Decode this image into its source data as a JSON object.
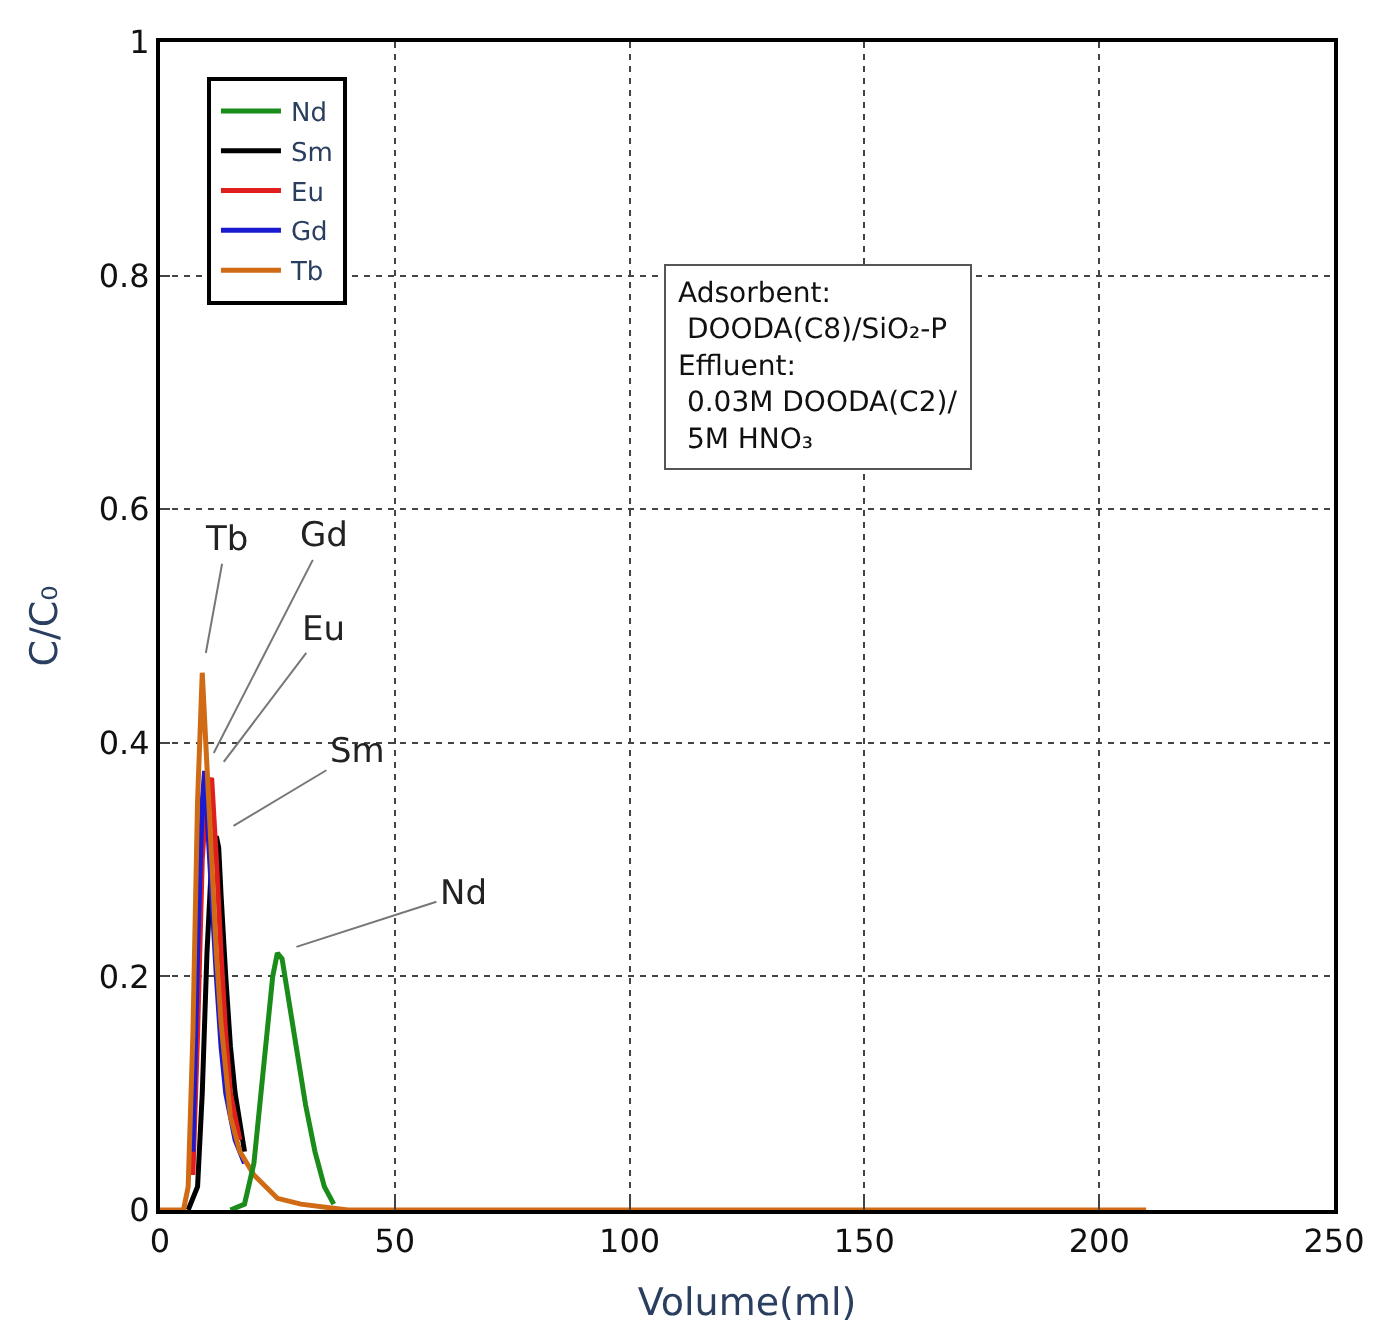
{
  "chart_data": {
    "type": "line",
    "xlabel": "Volume(ml)",
    "ylabel": "C/C₀",
    "xlim": [
      0,
      250
    ],
    "ylim": [
      0,
      1
    ],
    "xticks": [
      0,
      50,
      100,
      150,
      200,
      250
    ],
    "yticks": [
      0,
      0.2,
      0.4,
      0.6,
      0.8,
      1
    ],
    "grid": true,
    "legend": "top left",
    "series": [
      {
        "name": "Nd",
        "color": "#1a8c1a",
        "x": [
          15,
          18,
          20,
          22,
          24,
          25,
          26,
          27,
          29,
          31,
          33,
          35,
          37
        ],
        "values": [
          0,
          0.005,
          0.04,
          0.12,
          0.2,
          0.22,
          0.215,
          0.19,
          0.14,
          0.09,
          0.05,
          0.02,
          0.005
        ]
      },
      {
        "name": "Sm",
        "color": "#000000",
        "x": [
          6,
          8,
          9,
          10,
          11,
          12,
          12.5,
          13,
          14,
          15,
          16,
          18
        ],
        "values": [
          0,
          0.02,
          0.1,
          0.22,
          0.3,
          0.32,
          0.31,
          0.27,
          0.2,
          0.14,
          0.1,
          0.05
        ]
      },
      {
        "name": "Eu",
        "color": "#e01e1e",
        "x": [
          7,
          8,
          9,
          10,
          11,
          12,
          13,
          14,
          15,
          17
        ],
        "values": [
          0.03,
          0.15,
          0.3,
          0.36,
          0.37,
          0.3,
          0.22,
          0.15,
          0.1,
          0.06
        ]
      },
      {
        "name": "Gd",
        "color": "#1a1ad0",
        "x": [
          7,
          8,
          9,
          9.5,
          10,
          11,
          12,
          13,
          14,
          16,
          18
        ],
        "values": [
          0.05,
          0.22,
          0.35,
          0.376,
          0.34,
          0.27,
          0.2,
          0.14,
          0.1,
          0.06,
          0.04
        ]
      },
      {
        "name": "Tb",
        "color": "#d06a14",
        "x": [
          0,
          5,
          6,
          7,
          8,
          9,
          10,
          11,
          12,
          13,
          14,
          15,
          17,
          20,
          25,
          30,
          40,
          60,
          100,
          150,
          210
        ],
        "values": [
          0,
          0,
          0.02,
          0.15,
          0.35,
          0.46,
          0.38,
          0.3,
          0.22,
          0.16,
          0.12,
          0.08,
          0.05,
          0.03,
          0.01,
          0.005,
          0,
          0,
          0,
          0,
          0
        ]
      }
    ],
    "annotations": [
      {
        "text": "Tb",
        "x": 9,
        "y": 0.46
      },
      {
        "text": "Gd",
        "x": 9.5,
        "y": 0.376
      },
      {
        "text": "Eu",
        "x": 11,
        "y": 0.37
      },
      {
        "text": "Sm",
        "x": 12,
        "y": 0.32
      },
      {
        "text": "Nd",
        "x": 25,
        "y": 0.22
      },
      "Adsorbent:\n DOODA(C8)/SiO₂-P\nEffluent:\n 0.03M DOODA(C2)/\n 5M HNO₃"
    ]
  }
}
